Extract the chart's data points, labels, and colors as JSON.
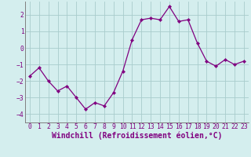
{
  "x": [
    0,
    1,
    2,
    3,
    4,
    5,
    6,
    7,
    8,
    9,
    10,
    11,
    12,
    13,
    14,
    15,
    16,
    17,
    18,
    19,
    20,
    21,
    22,
    23
  ],
  "y": [
    -1.7,
    -1.2,
    -2.0,
    -2.6,
    -2.3,
    -3.0,
    -3.7,
    -3.3,
    -3.5,
    -2.7,
    -1.4,
    0.5,
    1.7,
    1.8,
    1.7,
    2.5,
    1.6,
    1.7,
    0.3,
    -0.8,
    -1.1,
    -0.7,
    -1.0,
    -0.8
  ],
  "line_color": "#800080",
  "marker": "D",
  "marker_size": 2.2,
  "bg_color": "#d4eeee",
  "grid_color": "#a8cccc",
  "axis_color": "#800080",
  "spine_color": "#808080",
  "xlabel": "Windchill (Refroidissement éolien,°C)",
  "ylim": [
    -4.5,
    2.8
  ],
  "xlim": [
    -0.5,
    23.5
  ],
  "yticks": [
    -4,
    -3,
    -2,
    -1,
    0,
    1,
    2
  ],
  "xticks": [
    0,
    1,
    2,
    3,
    4,
    5,
    6,
    7,
    8,
    9,
    10,
    11,
    12,
    13,
    14,
    15,
    16,
    17,
    18,
    19,
    20,
    21,
    22,
    23
  ],
  "tick_fontsize": 5.8,
  "xlabel_fontsize": 7.0
}
